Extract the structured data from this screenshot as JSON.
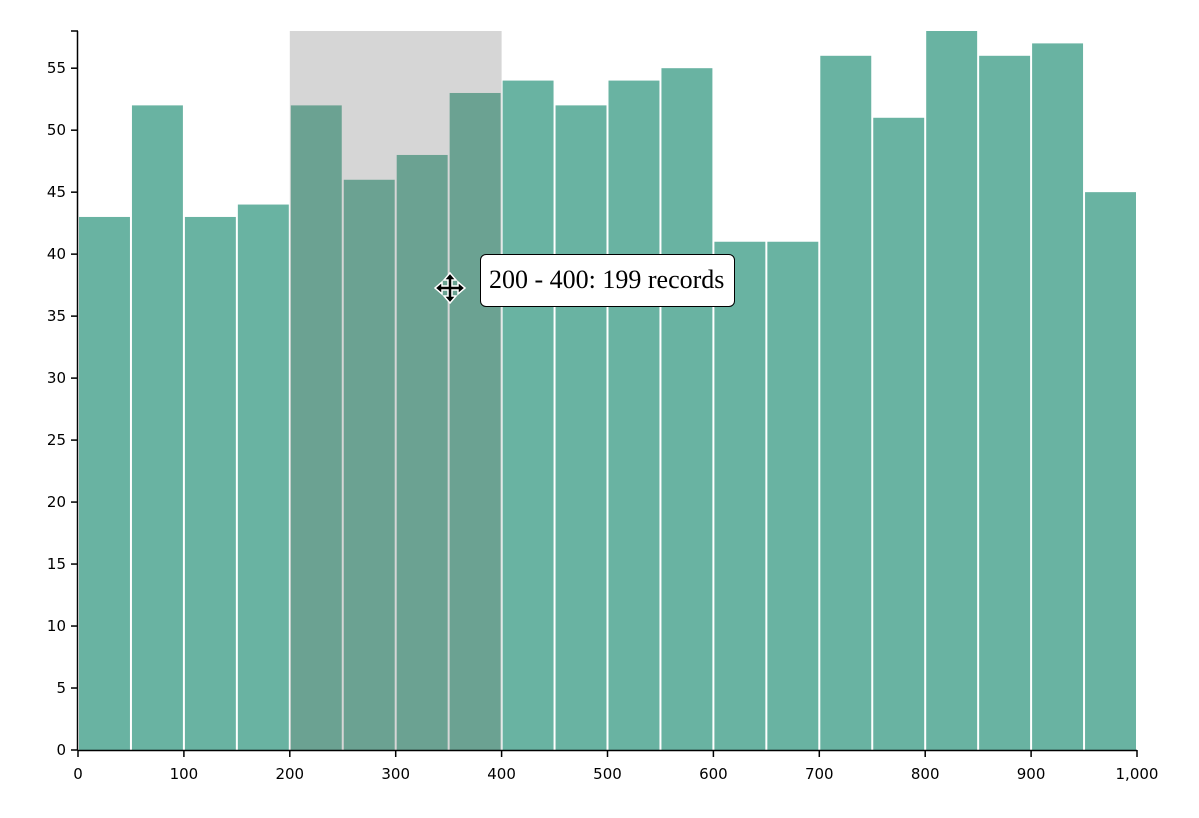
{
  "chart_data": {
    "type": "bar",
    "bin_width": 50,
    "bins": [
      0,
      50,
      100,
      150,
      200,
      250,
      300,
      350,
      400,
      450,
      500,
      550,
      600,
      650,
      700,
      750,
      800,
      850,
      900,
      950
    ],
    "values": [
      43,
      52,
      43,
      44,
      52,
      46,
      48,
      53,
      54,
      52,
      54,
      55,
      41,
      41,
      56,
      51,
      58,
      56,
      57,
      45
    ],
    "xlim": [
      0,
      1000
    ],
    "ylim": [
      0,
      58
    ],
    "x_ticks": [
      0,
      100,
      200,
      300,
      400,
      500,
      600,
      700,
      800,
      900,
      1000
    ],
    "x_tick_labels": [
      "0",
      "100",
      "200",
      "300",
      "400",
      "500",
      "600",
      "700",
      "800",
      "900",
      "1,000"
    ],
    "y_ticks": [
      0,
      5,
      10,
      15,
      20,
      25,
      30,
      35,
      40,
      45,
      50,
      55
    ],
    "y_tick_labels": [
      "0",
      "5",
      "10",
      "15",
      "20",
      "25",
      "30",
      "35",
      "40",
      "45",
      "50",
      "55"
    ],
    "selection": [
      200,
      400
    ],
    "colors": {
      "bar": "#69b3a2",
      "bar_selected": "#6ba292",
      "selection_bg": "#d6d6d6"
    }
  },
  "tooltip": {
    "text": "200 - 400: 199 records"
  },
  "cursor": {
    "icon": "move-cursor-icon"
  }
}
